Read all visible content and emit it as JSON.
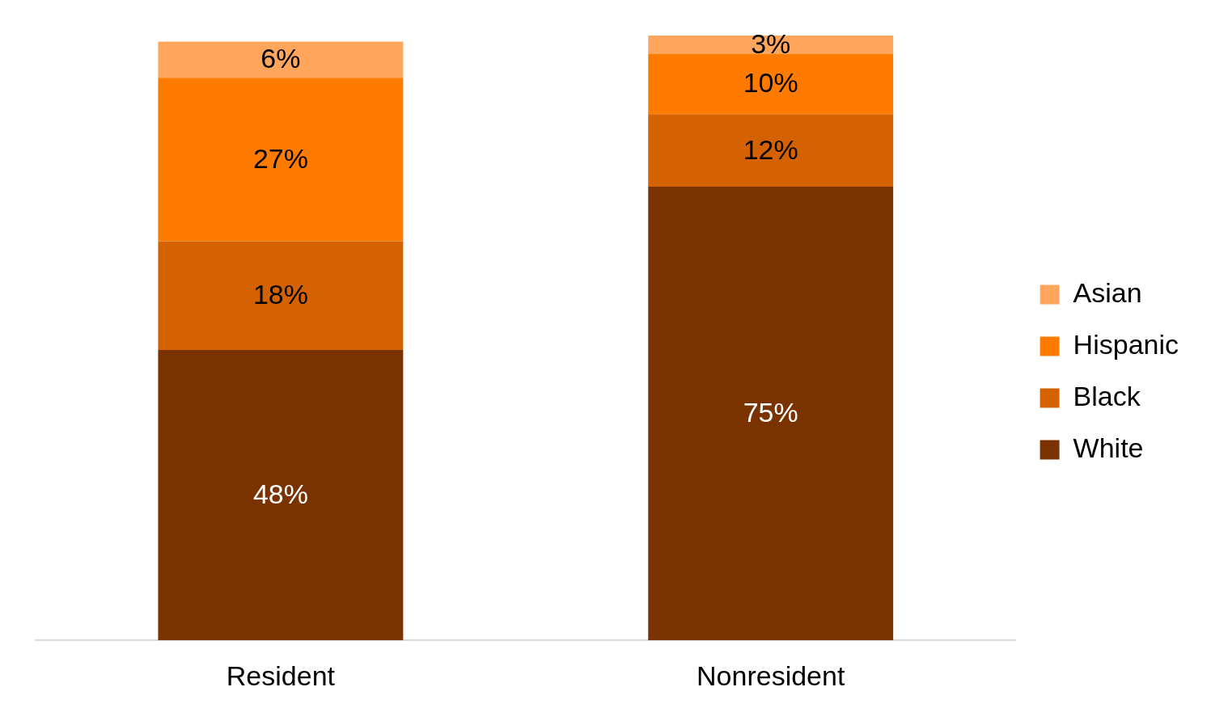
{
  "chart_data": {
    "type": "bar",
    "stacked": true,
    "categories": [
      "Resident",
      "Nonresident"
    ],
    "series": [
      {
        "name": "White",
        "color": "#7a3300",
        "values": [
          48,
          75
        ],
        "value_labels": [
          "48%",
          "75%"
        ]
      },
      {
        "name": "Black",
        "color": "#d46200",
        "values": [
          18,
          12
        ],
        "value_labels": [
          "18%",
          "12%"
        ]
      },
      {
        "name": "Hispanic",
        "color": "#ff7b00",
        "values": [
          27,
          10
        ],
        "value_labels": [
          "27%",
          "10%"
        ]
      },
      {
        "name": "Asian",
        "color": "#ffa65c",
        "values": [
          6,
          3
        ],
        "value_labels": [
          "6%",
          "3%"
        ]
      }
    ],
    "ylim": [
      0,
      100
    ],
    "grid": false,
    "legend": "right",
    "data_labels": true,
    "tick_labels": "x"
  }
}
